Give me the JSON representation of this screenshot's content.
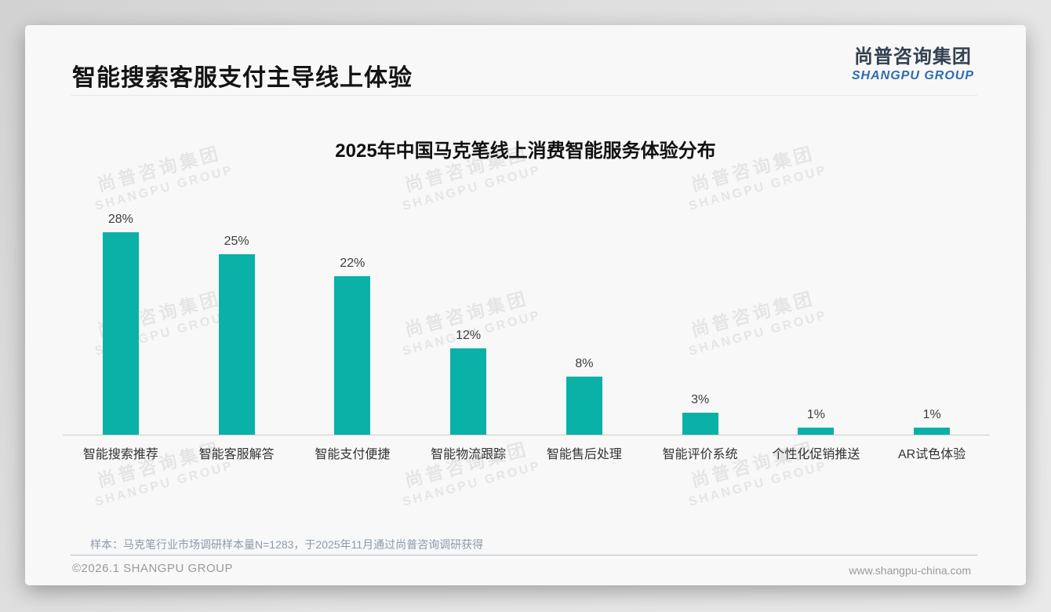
{
  "page": {
    "slide_title": "智能搜索客服支付主导线上体验",
    "logo": {
      "zh": "尚普咨询集团",
      "en": "SHANGPU GROUP"
    },
    "watermark": {
      "line1": "尚普咨询集团",
      "line2": "SHANGPU GROUP"
    },
    "footnote": "样本：马克笔行业市场调研样本量N=1283，于2025年11月通过尚普咨询调研获得",
    "footer": {
      "copyright": "©2026.1 SHANGPU GROUP",
      "website": "www.shangpu-china.com"
    }
  },
  "chart_data": {
    "type": "bar",
    "title": "2025年中国马克笔线上消费智能服务体验分布",
    "categories": [
      "智能搜索推荐",
      "智能客服解答",
      "智能支付便捷",
      "智能物流跟踪",
      "智能售后处理",
      "智能评价系统",
      "个性化促销推送",
      "AR试色体验"
    ],
    "values": [
      28,
      25,
      22,
      12,
      8,
      3,
      1,
      1
    ],
    "unit": "%",
    "data_labels": [
      "28%",
      "25%",
      "22%",
      "12%",
      "8%",
      "3%",
      "1%",
      "1%"
    ],
    "bar_color": "#0AB1A6",
    "xlabel": "",
    "ylabel": "",
    "ylim": [
      0,
      30
    ],
    "grid": false,
    "legend": "none",
    "axis_line_color": "#cccccc"
  }
}
